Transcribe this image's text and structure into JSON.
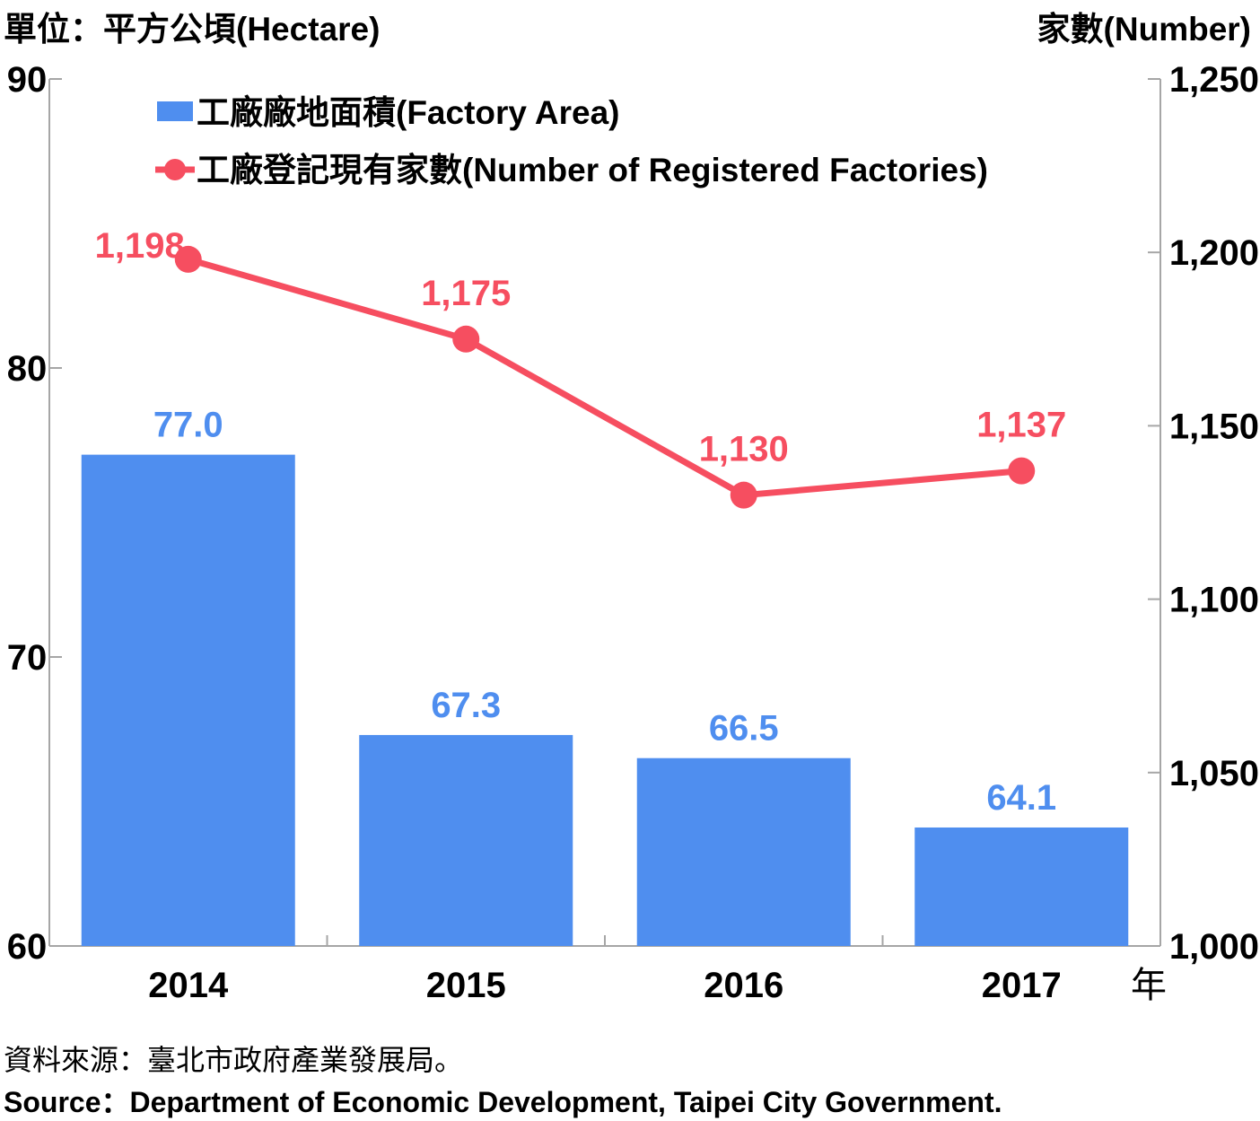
{
  "units": {
    "left": "單位：平方公頃(Hectare)",
    "right": "家數(Number)",
    "x": "年"
  },
  "source": {
    "zh": "資料來源：臺北市政府產業發展局。",
    "en": "Source：Department of Economic Development, Taipei City Government."
  },
  "colors": {
    "bar": "#4f8eef",
    "line": "#f64e60",
    "axis": "#a6a6a6"
  },
  "chart_data": {
    "type": "bar+line",
    "categories": [
      "2014",
      "2015",
      "2016",
      "2017"
    ],
    "series": [
      {
        "name": "工廠廠地面積(Factory Area)",
        "type": "bar",
        "axis": "left",
        "values": [
          77.0,
          67.3,
          66.5,
          64.1
        ],
        "labels": [
          "77.0",
          "67.3",
          "66.5",
          "64.1"
        ]
      },
      {
        "name": "工廠登記現有家數(Number of Registered Factories)",
        "type": "line",
        "axis": "right",
        "values": [
          1198,
          1175,
          1130,
          1137
        ],
        "labels": [
          "1,198",
          "1,175",
          "1,130",
          "1,137"
        ]
      }
    ],
    "y_left": {
      "lim": [
        60,
        90
      ],
      "ticks": [
        "60",
        "70",
        "80",
        "90"
      ],
      "tick_values": [
        60,
        70,
        80,
        90
      ]
    },
    "y_right": {
      "lim": [
        1000,
        1250
      ],
      "ticks": [
        "1,000",
        "1,050",
        "1,100",
        "1,150",
        "1,200",
        "1,250"
      ],
      "tick_values": [
        1000,
        1050,
        1100,
        1150,
        1200,
        1250
      ]
    },
    "legend": "top-left",
    "grid": false
  }
}
